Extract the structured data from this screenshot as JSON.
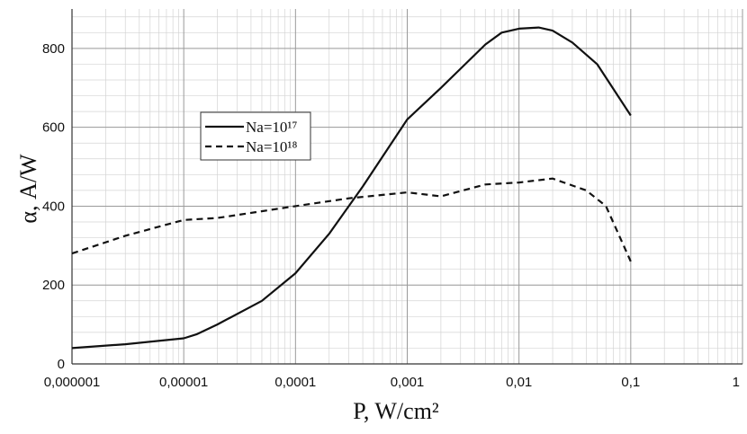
{
  "chart_data": {
    "type": "line",
    "x_label": "P, W/cm²",
    "y_label": "α, A/W",
    "x_log": true,
    "grid": true,
    "legend_position": "upper left",
    "xlim": [
      1e-06,
      1
    ],
    "ylim": [
      0,
      900
    ],
    "xticks": [
      {
        "value": 1e-06,
        "label": "0,000001"
      },
      {
        "value": 1e-05,
        "label": "0,00001"
      },
      {
        "value": 0.0001,
        "label": "0,0001"
      },
      {
        "value": 0.001,
        "label": "0,001"
      },
      {
        "value": 0.01,
        "label": "0,01"
      },
      {
        "value": 0.1,
        "label": "0,1"
      },
      1
    ],
    "yticks": [
      0,
      200,
      400,
      600,
      800
    ],
    "series": [
      {
        "name": "Na=10¹⁷",
        "color": "#111111",
        "dash": "solid",
        "x": [
          1e-06,
          3e-06,
          1e-05,
          1.3e-05,
          2e-05,
          5e-05,
          0.0001,
          0.0002,
          0.0004,
          0.001,
          0.002,
          0.005,
          0.007,
          0.01,
          0.015,
          0.02,
          0.03,
          0.05,
          0.1
        ],
        "values": [
          40,
          50,
          65,
          75,
          100,
          160,
          230,
          330,
          450,
          620,
          700,
          810,
          840,
          850,
          853,
          845,
          815,
          760,
          630
        ]
      },
      {
        "name": "Na=10¹⁸",
        "color": "#111111",
        "dash": "dashed",
        "x": [
          1e-06,
          3e-06,
          1e-05,
          2e-05,
          0.0001,
          0.0003,
          0.001,
          0.002,
          0.005,
          0.01,
          0.02,
          0.04,
          0.06,
          0.1
        ],
        "values": [
          280,
          325,
          365,
          370,
          400,
          420,
          435,
          425,
          455,
          460,
          470,
          440,
          400,
          260
        ]
      }
    ]
  }
}
